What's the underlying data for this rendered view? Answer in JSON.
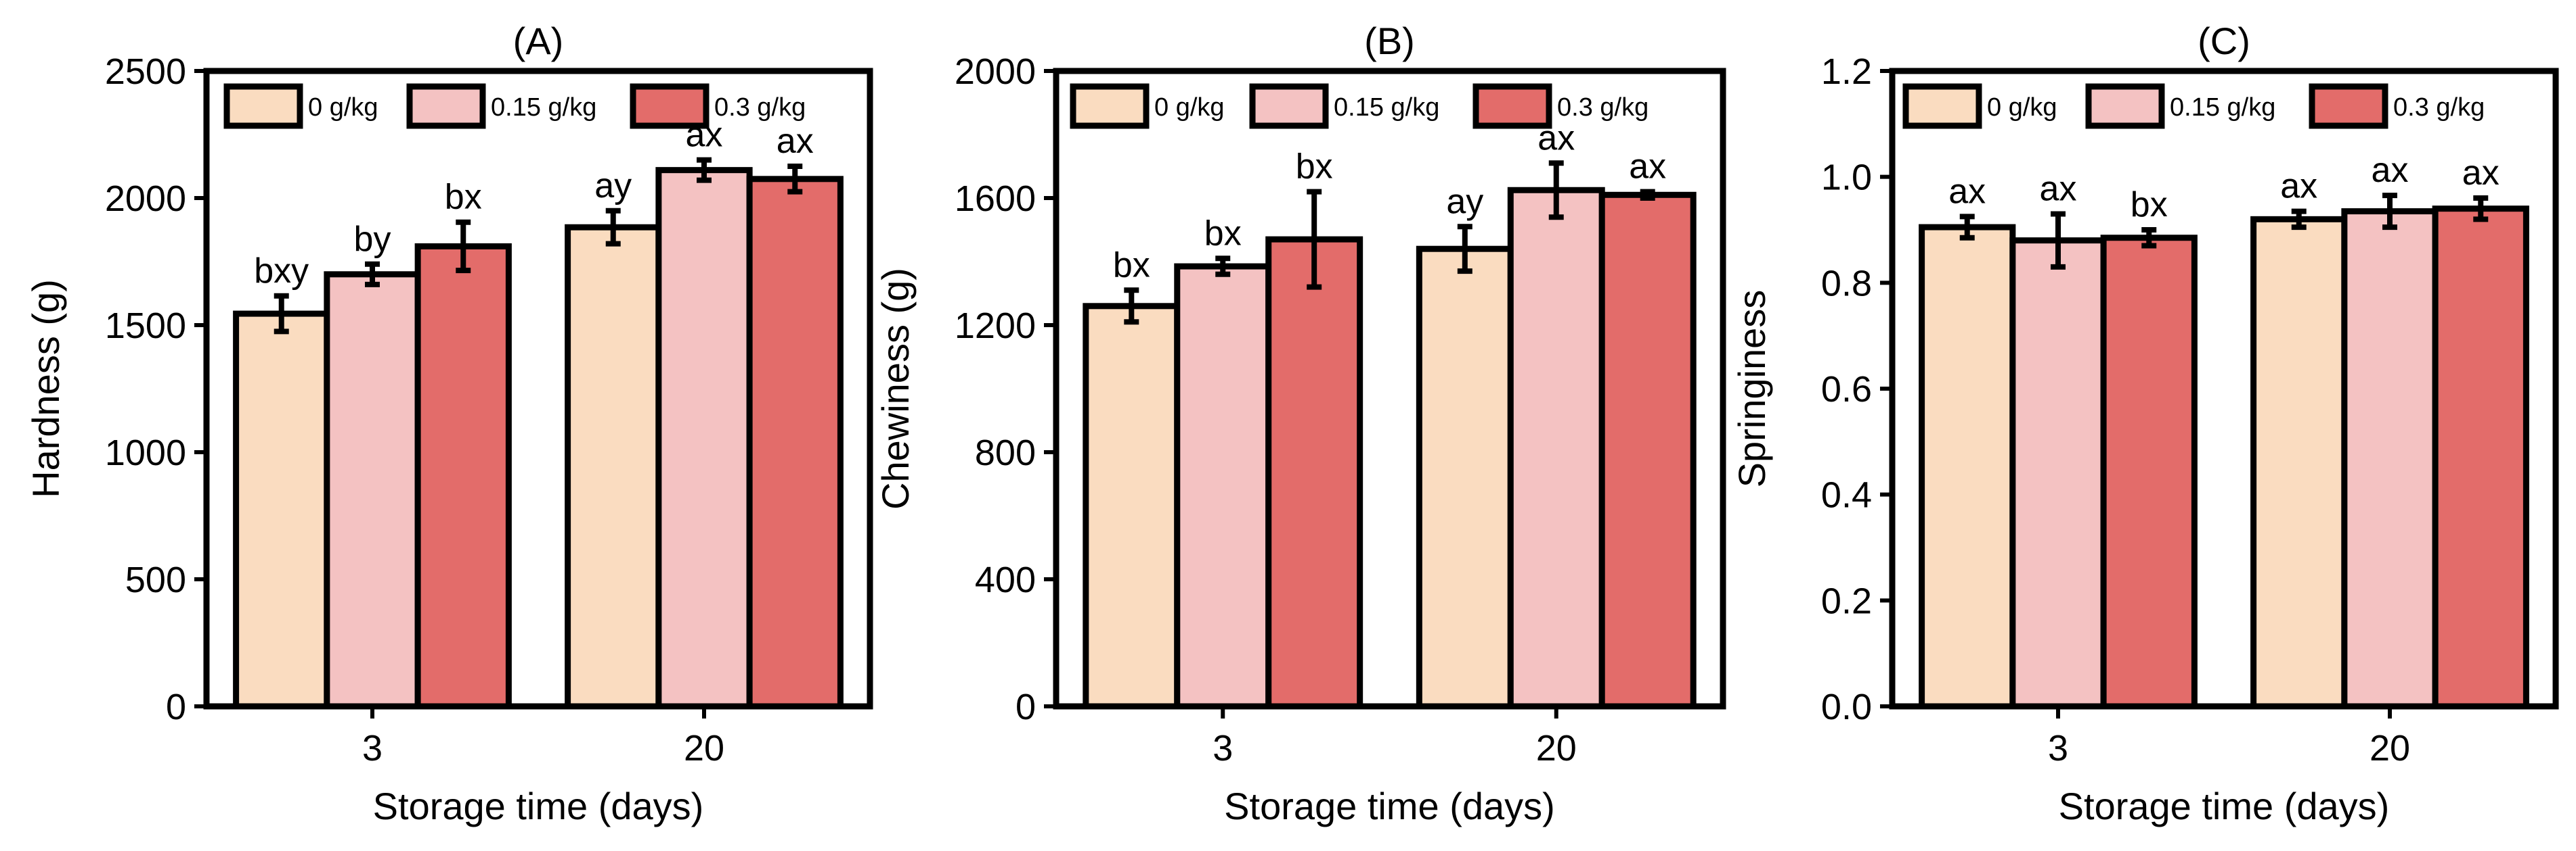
{
  "chart_data": [
    {
      "type": "bar",
      "panel": "(A)",
      "xlabel": "Storage time (days)",
      "ylabel": "Hardness (g)",
      "ylim": [
        0,
        2500
      ],
      "yticks": [
        0,
        500,
        1000,
        1500,
        2000,
        2500
      ],
      "categories": [
        "3",
        "20"
      ],
      "legend": {
        "position": "top",
        "entries": [
          "0 g/kg",
          "0.15 g/kg",
          "0.3 g/kg"
        ]
      },
      "series": [
        {
          "name": "0 g/kg",
          "color": "#fadcc0",
          "values": [
            1545,
            1885
          ],
          "errors": [
            70,
            65
          ],
          "labels": [
            "bxy",
            "ay"
          ]
        },
        {
          "name": "0.15 g/kg",
          "color": "#f4c2c2",
          "values": [
            1700,
            2110
          ],
          "errors": [
            40,
            40
          ],
          "labels": [
            "by",
            "ax"
          ]
        },
        {
          "name": "0.3 g/kg",
          "color": "#e36c6a",
          "values": [
            1810,
            2075
          ],
          "errors": [
            95,
            50
          ],
          "labels": [
            "bx",
            "ax"
          ]
        }
      ]
    },
    {
      "type": "bar",
      "panel": "(B)",
      "xlabel": "Storage time (days)",
      "ylabel": "Chewiness (g)",
      "ylim": [
        0,
        2000
      ],
      "yticks": [
        0,
        400,
        800,
        1200,
        1600,
        2000
      ],
      "categories": [
        "3",
        "20"
      ],
      "legend": {
        "position": "top",
        "entries": [
          "0 g/kg",
          "0.15 g/kg",
          "0.3 g/kg"
        ]
      },
      "series": [
        {
          "name": "0 g/kg",
          "color": "#fadcc0",
          "values": [
            1260,
            1440
          ],
          "errors": [
            50,
            70
          ],
          "labels": [
            "bx",
            "ay"
          ]
        },
        {
          "name": "0.15 g/kg",
          "color": "#f4c2c2",
          "values": [
            1385,
            1625
          ],
          "errors": [
            25,
            85
          ],
          "labels": [
            "bx",
            "ax"
          ]
        },
        {
          "name": "0.3 g/kg",
          "color": "#e36c6a",
          "values": [
            1470,
            1610
          ],
          "errors": [
            150,
            10
          ],
          "labels": [
            "bx",
            "ax"
          ]
        }
      ]
    },
    {
      "type": "bar",
      "panel": "(C)",
      "xlabel": "Storage time (days)",
      "ylabel": "Springiness",
      "ylim": [
        0,
        1.2
      ],
      "yticks": [
        "0.0",
        "0.2",
        "0.4",
        "0.6",
        "0.8",
        "1.0",
        "1.2"
      ],
      "categories": [
        "3",
        "20"
      ],
      "legend": {
        "position": "top",
        "entries": [
          "0 g/kg",
          "0.15 g/kg",
          "0.3 g/kg"
        ]
      },
      "series": [
        {
          "name": "0 g/kg",
          "color": "#fadcc0",
          "values": [
            0.905,
            0.92
          ],
          "errors": [
            0.02,
            0.015
          ],
          "labels": [
            "ax",
            "ax"
          ]
        },
        {
          "name": "0.15 g/kg",
          "color": "#f4c2c2",
          "values": [
            0.88,
            0.935
          ],
          "errors": [
            0.05,
            0.03
          ],
          "labels": [
            "ax",
            "ax"
          ]
        },
        {
          "name": "0.3 g/kg",
          "color": "#e36c6a",
          "values": [
            0.885,
            0.94
          ],
          "errors": [
            0.015,
            0.02
          ],
          "labels": [
            "bx",
            "ax"
          ]
        }
      ]
    }
  ]
}
